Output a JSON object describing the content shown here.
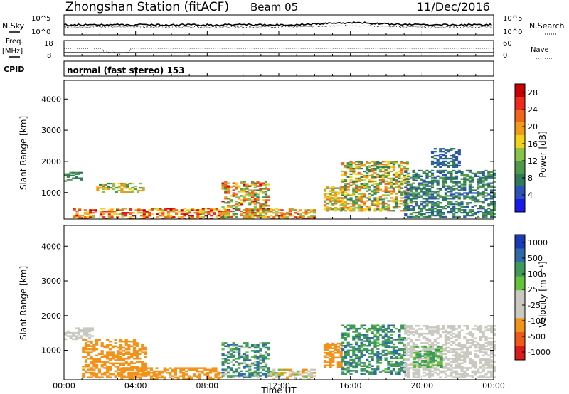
{
  "header": {
    "station": "Zhongshan Station (fitACF)",
    "beam": "Beam 05",
    "date": "11/Dec/2016"
  },
  "top_panels": {
    "nsky_label": "N.Sky",
    "nsearch_label": "N.Search",
    "freq_label_1": "Freq.",
    "freq_label_2": "[MHz]",
    "nave_label": "Nave",
    "cpid_label": "CPID",
    "noise_left_ticks": [
      "10^5",
      "10^0"
    ],
    "noise_right_ticks": [
      "10^5",
      "10^0"
    ],
    "freq_ticks": [
      "18",
      "8"
    ],
    "nave_ticks": [
      "60",
      "0"
    ],
    "cpid_text": "normal (fast stereo) 153"
  },
  "colors": {
    "power": [
      "#1a1aee",
      "#2a52b8",
      "#2f7a5a",
      "#4f9a4a",
      "#8ac24a",
      "#f2d21a",
      "#f29a1a",
      "#f0661a",
      "#ee2a1a",
      "#cc0000"
    ],
    "velocity": [
      "#dd1a1a",
      "#ee5a1a",
      "#f2921a",
      "#c9c9c0",
      "#c9c9c0",
      "#66c23a",
      "#3f9a5a",
      "#2f6aa8",
      "#1a3ab8"
    ]
  },
  "chart_data": [
    {
      "type": "heatmap",
      "name": "power",
      "ylabel": "Slant Range [km]",
      "yticks": [
        1000,
        2000,
        3000,
        4000
      ],
      "ylim": [
        150,
        4600
      ],
      "xlim": [
        0,
        24
      ],
      "colorbar_label": "Power [dB]",
      "colorbar_ticks": [
        4,
        8,
        12,
        16,
        20,
        24,
        28
      ],
      "colorbar_range": [
        0,
        30
      ],
      "regions": [
        {
          "t0": 0.0,
          "t1": 1.0,
          "r0": 1350,
          "r1": 1650,
          "v0": 6,
          "v1": 12
        },
        {
          "t0": 1.8,
          "t1": 4.5,
          "r0": 1000,
          "r1": 1300,
          "v0": 8,
          "v1": 22
        },
        {
          "t0": 0.5,
          "t1": 9.0,
          "r0": 150,
          "r1": 500,
          "v0": 14,
          "v1": 29
        },
        {
          "t0": 8.8,
          "t1": 11.5,
          "r0": 200,
          "r1": 1350,
          "v0": 8,
          "v1": 28
        },
        {
          "t0": 10.0,
          "t1": 14.0,
          "r0": 150,
          "r1": 500,
          "v0": 12,
          "v1": 26
        },
        {
          "t0": 14.5,
          "t1": 15.6,
          "r0": 400,
          "r1": 1200,
          "v0": 10,
          "v1": 24
        },
        {
          "t0": 15.5,
          "t1": 19.2,
          "r0": 400,
          "r1": 2000,
          "v0": 6,
          "v1": 24
        },
        {
          "t0": 19.0,
          "t1": 24.0,
          "r0": 200,
          "r1": 1700,
          "v0": 4,
          "v1": 12
        },
        {
          "t0": 20.5,
          "t1": 22.0,
          "r0": 1800,
          "r1": 2400,
          "v0": 4,
          "v1": 8
        }
      ]
    },
    {
      "type": "heatmap",
      "name": "velocity",
      "ylabel": "Slant Range [km]",
      "xlabel": "Time UT",
      "yticks": [
        1000,
        2000,
        3000,
        4000
      ],
      "ylim": [
        150,
        4600
      ],
      "xlim": [
        0,
        24
      ],
      "xticks": [
        "00:00",
        "04:00",
        "08:00",
        "12:00",
        "16:00",
        "20:00",
        "00:00"
      ],
      "colorbar_label": "Velocity [m s⁻¹]",
      "colorbar_ticks": [
        "1000",
        "500",
        "100",
        "25",
        "-25",
        "-100",
        "-500",
        "-1000"
      ],
      "regions": [
        {
          "t0": 0.0,
          "t1": 1.5,
          "r0": 1300,
          "r1": 1650,
          "v0": -20,
          "v1": 20
        },
        {
          "t0": 1.0,
          "t1": 4.5,
          "r0": 200,
          "r1": 1300,
          "v0": -400,
          "v1": -150
        },
        {
          "t0": 3.0,
          "t1": 8.8,
          "r0": 150,
          "r1": 500,
          "v0": -300,
          "v1": -100
        },
        {
          "t0": 8.8,
          "t1": 11.5,
          "r0": 200,
          "r1": 1200,
          "v0": -100,
          "v1": 800
        },
        {
          "t0": 11.5,
          "t1": 14.0,
          "r0": 150,
          "r1": 450,
          "v0": -200,
          "v1": 100
        },
        {
          "t0": 14.5,
          "t1": 15.5,
          "r0": 500,
          "r1": 1200,
          "v0": -500,
          "v1": -200
        },
        {
          "t0": 15.5,
          "t1": 19.0,
          "r0": 300,
          "r1": 1700,
          "v0": 50,
          "v1": 700
        },
        {
          "t0": 19.0,
          "t1": 24.0,
          "r0": 200,
          "r1": 1700,
          "v0": -20,
          "v1": 20
        },
        {
          "t0": 19.5,
          "t1": 21.0,
          "r0": 500,
          "r1": 1100,
          "v0": 50,
          "v1": 150
        }
      ]
    }
  ]
}
